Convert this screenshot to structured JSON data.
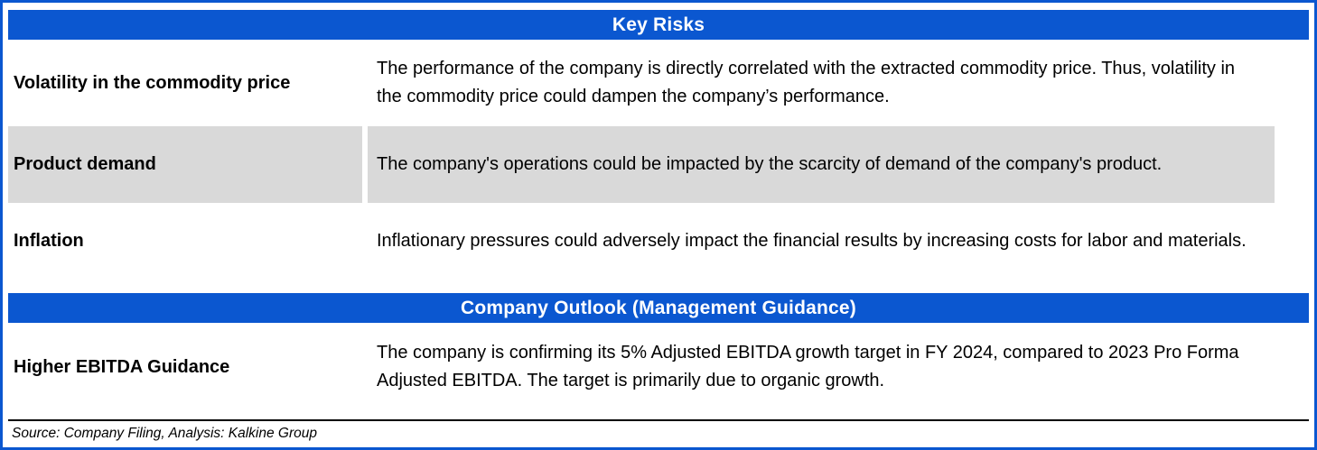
{
  "colors": {
    "accent": "#0B57D0",
    "shade": "#D9D9D9",
    "header_text": "#FFFFFF"
  },
  "sections": [
    {
      "title": "Key Risks",
      "rows": [
        {
          "label": "Volatility in the commodity price",
          "text": "The performance of the company is directly correlated with the extracted commodity price. Thus, volatility in the commodity price could dampen the company’s performance.",
          "shaded": false
        },
        {
          "label": "Product demand",
          "text": "The company's operations could be impacted by the scarcity of demand of the company's product.",
          "shaded": true
        },
        {
          "label": "Inflation",
          "text": "Inflationary pressures could adversely impact the financial results by increasing costs for labor and materials.",
          "shaded": false
        }
      ]
    },
    {
      "title": "Company Outlook (Management Guidance)",
      "rows": [
        {
          "label": "Higher EBITDA Guidance",
          "text": "The company is confirming its 5% Adjusted EBITDA growth target in FY 2024, compared to 2023 Pro Forma Adjusted EBITDA. The target is primarily due to organic growth.",
          "shaded": false
        }
      ]
    }
  ],
  "footer": {
    "source": "Source: Company Filing, Analysis: Kalkine Group"
  }
}
